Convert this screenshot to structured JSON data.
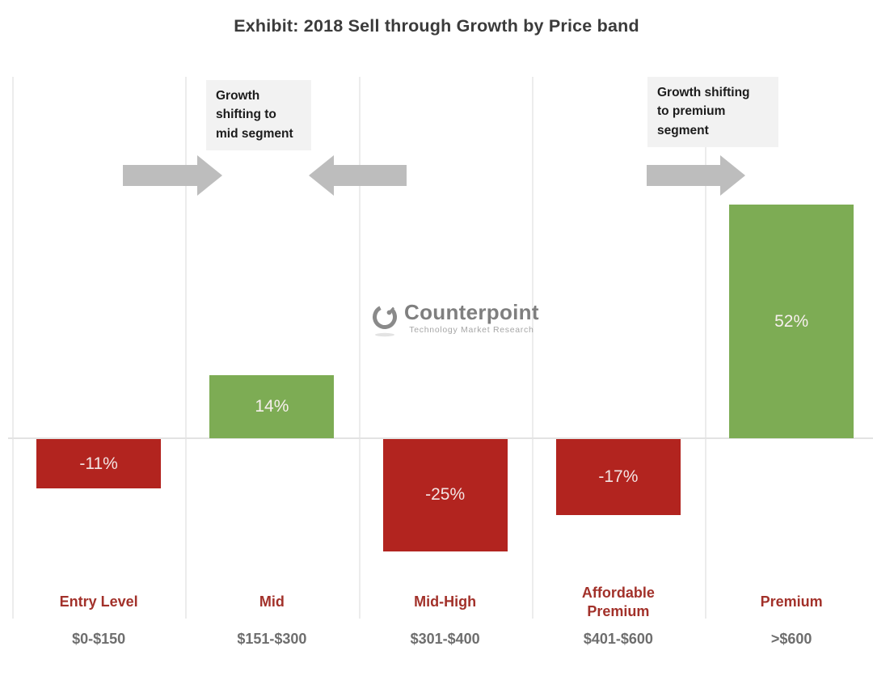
{
  "title": "Exhibit: 2018 Sell through Growth by Price band",
  "chart_data": {
    "type": "bar",
    "title": "Exhibit: 2018 Sell through Growth by Price band",
    "categories": [
      "Entry Level",
      "Mid",
      "Mid-High",
      "Affordable Premium",
      "Premium"
    ],
    "price_bands": [
      "$0-$150",
      "$151-$300",
      "$301-$400",
      "$401-$600",
      ">$600"
    ],
    "values": [
      -11,
      14,
      -25,
      -17,
      52
    ],
    "data_labels": [
      "-11%",
      "14%",
      "-25%",
      "-17%",
      "52%"
    ],
    "unit": "percent",
    "ylim": [
      -40,
      80
    ],
    "grid": "vertical column separators only, no y-axis ticks",
    "legend": "none",
    "bar_colors": {
      "positive": "#7dac54",
      "negative": "#b2241f"
    }
  },
  "annotations": [
    {
      "id": "mid",
      "text": "Growth\nshifting to\nmid segment",
      "arrows": [
        "right",
        "left"
      ]
    },
    {
      "id": "premium",
      "text": "Growth shifting\nto premium\nsegment",
      "arrows": [
        "right"
      ]
    }
  ],
  "watermark": {
    "brand": "Counterpoint",
    "tagline": "Technology Market Research"
  },
  "colors": {
    "title_text": "#3b3b3b",
    "category_label": "#a2312a",
    "price_label": "#6e6e6e",
    "arrow": "#bdbdbd",
    "annotation_bg": "#f2f2f2",
    "gridline": "#ececec",
    "axis_line": "#e3e3e3",
    "watermark_gray": "#7f7f7f"
  }
}
